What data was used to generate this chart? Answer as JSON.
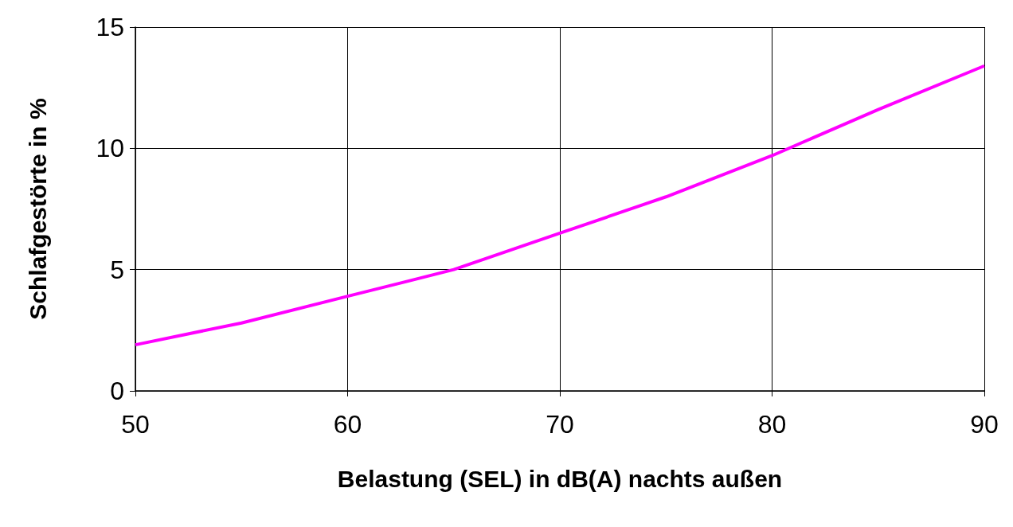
{
  "chart_data": {
    "type": "line",
    "xlabel": "Belastung (SEL) in dB(A) nachts außen",
    "ylabel": "Schlafgestörte in %",
    "x": [
      50,
      55,
      60,
      65,
      70,
      75,
      80,
      85,
      90
    ],
    "series": [
      {
        "color": "#ff00ff",
        "values": [
          1.9,
          2.8,
          3.9,
          5.0,
          6.5,
          8.0,
          9.7,
          11.6,
          13.4
        ]
      }
    ],
    "xlim": [
      50,
      90
    ],
    "xticks": [
      50,
      60,
      70,
      80,
      90
    ],
    "ylim": [
      0,
      15
    ],
    "yticks": [
      0,
      5,
      10,
      15
    ],
    "grid": true,
    "marker": "none",
    "line_style": "solid"
  }
}
